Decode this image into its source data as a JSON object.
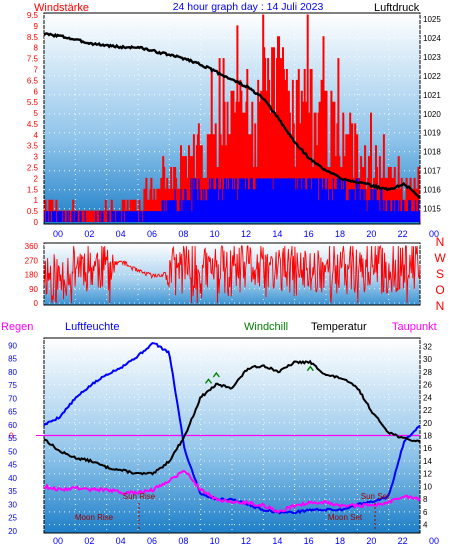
{
  "header": {
    "left": "Windstärke",
    "title": "24 hour graph day : 14 Juli 2023",
    "right": "Luftdruck"
  },
  "colors": {
    "wind_speed": "#ff0000",
    "wind_gust": "#ff0000",
    "wind_avg": "#0000ff",
    "pressure": "#000000",
    "direction": "#ff0000",
    "regen": "#ff00ff",
    "humidity": "#0000ff",
    "windchill": "#008000",
    "temperature": "#000000",
    "dewpoint": "#ff00ff",
    "sky_top": "#ffffff",
    "sky_bottom": "#1e7fc8"
  },
  "x_ticks": [
    "00",
    "02",
    "04",
    "06",
    "08",
    "10",
    "12",
    "14",
    "16",
    "18",
    "20",
    "22",
    "00"
  ],
  "chart_data": [
    {
      "type": "line",
      "id": "wind_pressure",
      "y_left_ticks": [
        "0",
        "0.5",
        "1",
        "1.5",
        "2",
        "2.5",
        "3",
        "3.5",
        "4",
        "4.5",
        "5",
        "5.5",
        "6",
        "6.5",
        "7",
        "7.5",
        "8",
        "8.5",
        "9",
        "9.5"
      ],
      "y_right_ticks": [
        "1015",
        "1016",
        "1017",
        "1018",
        "1019",
        "1020",
        "1021",
        "1022",
        "1023",
        "1024",
        "1025"
      ],
      "ylim_left": [
        0,
        9.5
      ],
      "ylim_right": [
        1014.3,
        1025.2
      ],
      "xlim": [
        0,
        24
      ],
      "series": [
        {
          "name": "Windstärke",
          "axis": "left",
          "x": [
            0,
            1,
            2,
            3,
            4,
            5,
            6,
            7,
            8,
            9,
            10,
            11,
            12,
            13,
            14,
            15,
            16,
            17,
            18,
            19,
            20,
            21,
            22,
            23,
            24
          ],
          "y": [
            0.8,
            0.5,
            0.4,
            0.3,
            0.4,
            0.5,
            0.7,
            0.9,
            1.5,
            2.0,
            2.5,
            3.0,
            3.5,
            4.0,
            4.5,
            5.0,
            4.5,
            4.0,
            3.5,
            3.0,
            2.5,
            2.0,
            1.5,
            1.2,
            1.0
          ]
        },
        {
          "name": "Luftdruck",
          "axis": "right",
          "x": [
            0,
            1,
            2,
            3,
            4,
            5,
            6,
            7,
            8,
            9,
            10,
            11,
            12,
            13,
            14,
            15,
            16,
            17,
            18,
            19,
            20,
            21,
            22,
            23,
            24
          ],
          "y": [
            1024.2,
            1024.1,
            1023.9,
            1023.7,
            1023.6,
            1023.5,
            1023.5,
            1023.3,
            1023.1,
            1022.9,
            1022.6,
            1022.2,
            1021.8,
            1021.4,
            1020.8,
            1019.7,
            1018.5,
            1017.6,
            1017.0,
            1016.6,
            1016.4,
            1016.2,
            1016.0,
            1016.3,
            1015.6
          ]
        }
      ]
    },
    {
      "type": "line",
      "id": "wind_direction",
      "y_ticks": [
        "0",
        "90",
        "180",
        "270",
        "360"
      ],
      "ylim": [
        0,
        360
      ],
      "xlim": [
        0,
        24
      ],
      "compass": [
        "N",
        "W",
        "S",
        "O",
        "N"
      ],
      "series": [
        {
          "name": "Windrichtung",
          "x": [
            0,
            1,
            2,
            3,
            4,
            5,
            6,
            7,
            8,
            9,
            10,
            11,
            12,
            13,
            14,
            15,
            16,
            17,
            18,
            19,
            20,
            21,
            22,
            23,
            24
          ],
          "y": [
            200,
            150,
            260,
            230,
            240,
            260,
            200,
            170,
            190,
            230,
            180,
            220,
            170,
            240,
            190,
            220,
            200,
            190,
            230,
            200,
            210,
            230,
            190,
            240,
            220
          ]
        }
      ]
    },
    {
      "type": "line",
      "id": "temperature_humidity",
      "y_left_ticks": [
        "20",
        "25",
        "30",
        "35",
        "40",
        "45",
        "50",
        "55",
        "60",
        "65",
        "70",
        "75",
        "80",
        "85",
        "90"
      ],
      "y_right_ticks": [
        "4",
        "6",
        "8",
        "10",
        "12",
        "14",
        "16",
        "18",
        "20",
        "22",
        "24",
        "26",
        "28",
        "30",
        "32"
      ],
      "regen_value": "0",
      "ylim_left": [
        20,
        92
      ],
      "ylim_right": [
        3,
        33
      ],
      "xlim": [
        0,
        24
      ],
      "annotations": [
        "Sun Rise",
        "Moon Rise",
        "Sun Set",
        "Moon Set"
      ],
      "series": [
        {
          "name": "Luftfeuchte",
          "axis": "left",
          "x": [
            0,
            1,
            2,
            3,
            4,
            5,
            6,
            7,
            8,
            9,
            10,
            11,
            12,
            13,
            14,
            15,
            16,
            17,
            18,
            19,
            20,
            21,
            22,
            23,
            24
          ],
          "y": [
            60,
            63,
            70,
            75,
            79,
            82,
            86,
            91,
            87,
            50,
            34,
            32,
            32,
            30,
            28,
            27,
            27,
            28,
            28,
            28,
            30,
            31,
            33,
            54,
            60
          ]
        },
        {
          "name": "Windchill",
          "axis": "right",
          "x": [
            10.5,
            11.0,
            17.0
          ],
          "y": [
            26.5,
            27.5,
            28.5
          ]
        },
        {
          "name": "Temperatur",
          "axis": "right",
          "x": [
            0,
            1,
            2,
            3,
            4,
            5,
            6,
            7,
            8,
            9,
            10,
            11,
            12,
            13,
            14,
            15,
            16,
            17,
            18,
            19,
            20,
            21,
            22,
            23,
            24
          ],
          "y": [
            17.5,
            15.5,
            14.5,
            14.0,
            13.0,
            12.5,
            12.0,
            12.0,
            14.0,
            18.0,
            24.0,
            26.0,
            25.5,
            28.5,
            29.0,
            28.0,
            29.5,
            29.5,
            27.5,
            27.0,
            25.5,
            21.5,
            18.5,
            17.5,
            17.0
          ]
        },
        {
          "name": "Taupunkt",
          "axis": "right",
          "x": [
            0,
            1,
            2,
            3,
            4,
            5,
            6,
            7,
            8,
            9,
            10,
            11,
            12,
            13,
            14,
            15,
            16,
            17,
            18,
            19,
            20,
            21,
            22,
            23,
            24
          ],
          "y": [
            10.0,
            9.5,
            9.8,
            9.5,
            9.5,
            9.0,
            9.0,
            9.5,
            11.0,
            12.5,
            9.5,
            8.0,
            7.5,
            7.5,
            7.0,
            6.0,
            7.0,
            7.5,
            7.5,
            7.0,
            7.0,
            7.0,
            7.5,
            8.5,
            8.0
          ]
        }
      ]
    }
  ],
  "legend3": {
    "regen": "Regen",
    "humidity": "Luftfeuchte",
    "windchill": "Windchill",
    "temperature": "Temperatur",
    "dewpoint": "Taupunkt"
  }
}
